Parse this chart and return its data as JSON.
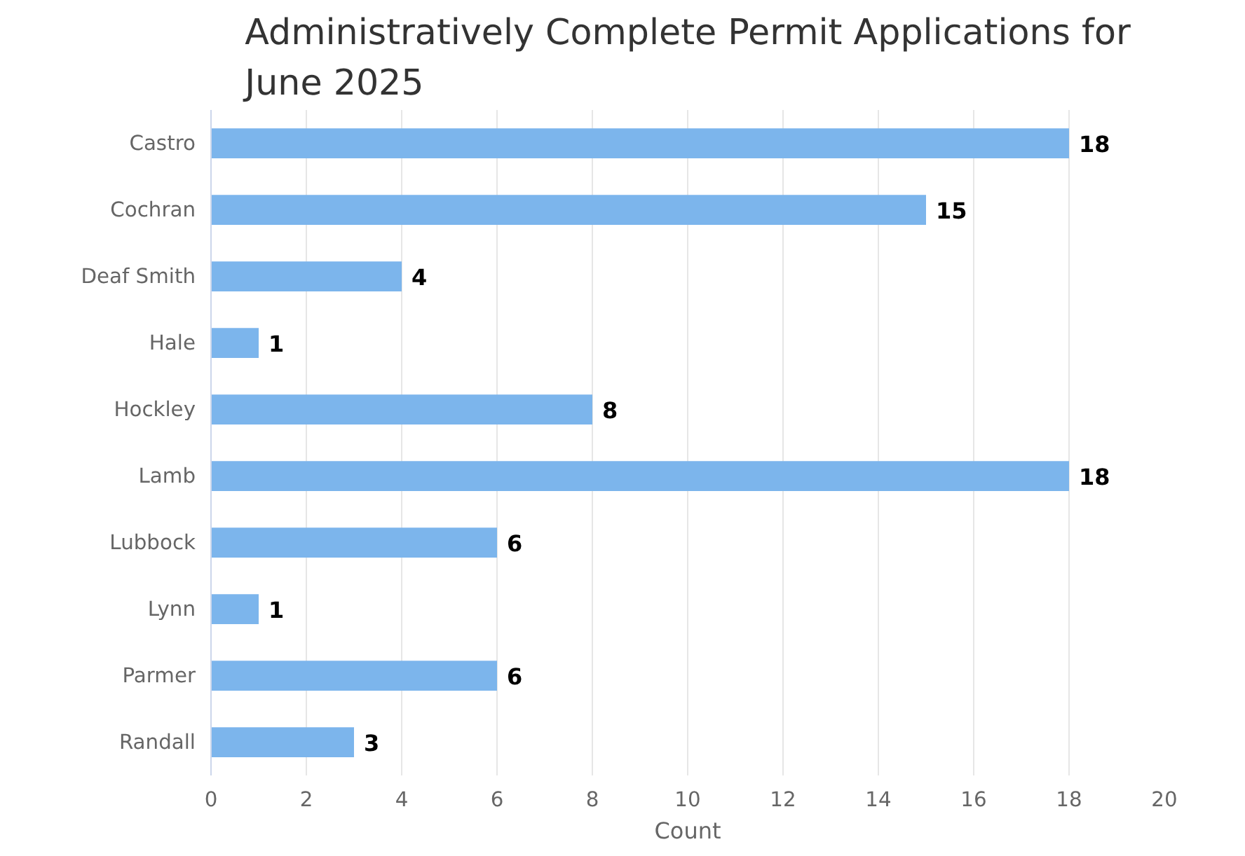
{
  "chart_data": {
    "type": "bar",
    "orientation": "horizontal",
    "title": "Administratively Complete Permit Applications for June 2025",
    "xlabel": "Count",
    "categories": [
      "Castro",
      "Cochran",
      "Deaf Smith",
      "Hale",
      "Hockley",
      "Lamb",
      "Lubbock",
      "Lynn",
      "Parmer",
      "Randall"
    ],
    "values": [
      18,
      15,
      4,
      1,
      8,
      18,
      6,
      1,
      6,
      3
    ],
    "color": "#7cb5ec",
    "xlim": [
      0,
      20
    ],
    "xticks": [
      0,
      2,
      4,
      6,
      8,
      10,
      12,
      14,
      16,
      18,
      20
    ],
    "grid": "x",
    "data_labels": true
  }
}
